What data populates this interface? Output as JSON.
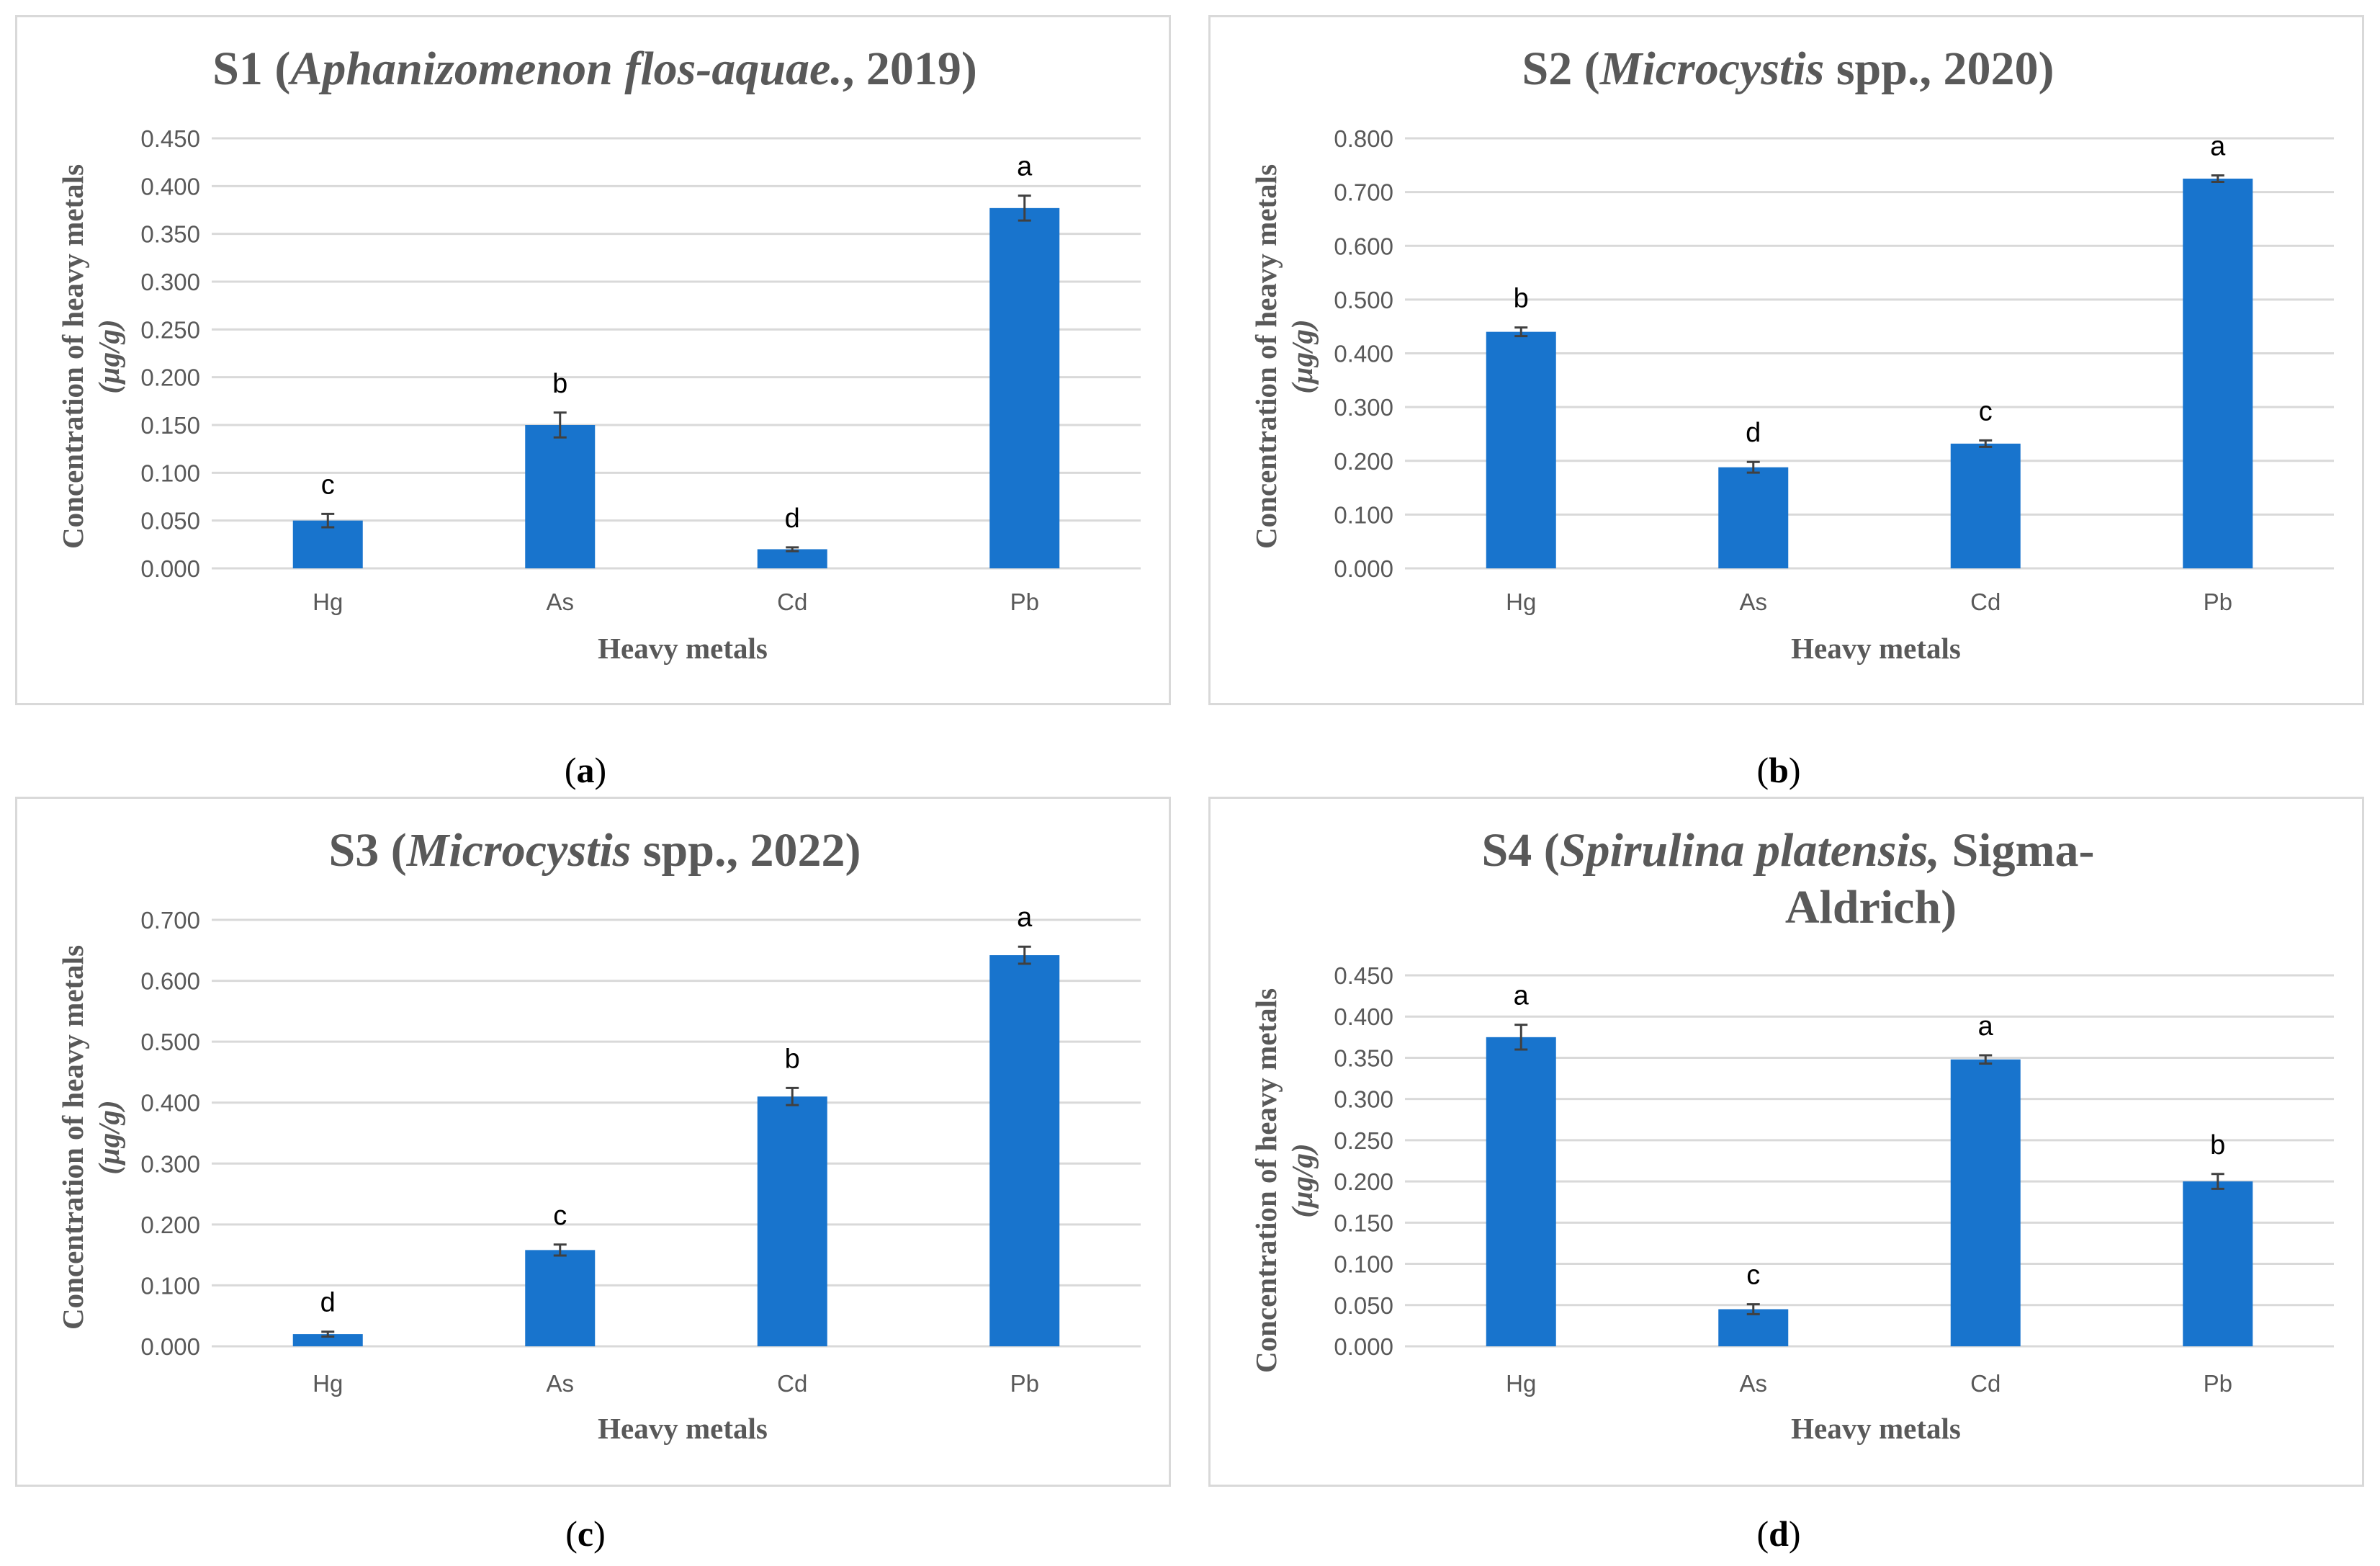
{
  "colors": {
    "bar": "#1874CD",
    "grid": "#d9d9d9",
    "text": "#595959",
    "border": "#d9d9d9",
    "errorbar": "#404040"
  },
  "captions": {
    "a": "a",
    "b": "b",
    "c": "c",
    "d": "d"
  },
  "chart_data": [
    {
      "type": "bar",
      "title": {
        "prefix": "S1 (",
        "italic": "Aphanizomenon flos-aquae.",
        "suffix": ", 2019)"
      },
      "categories": [
        "Hg",
        "As",
        "Cd",
        "Pb"
      ],
      "values": [
        0.05,
        0.15,
        0.02,
        0.377
      ],
      "errors": [
        0.007,
        0.013,
        0.002,
        0.013
      ],
      "letters": [
        "c",
        "b",
        "d",
        "a"
      ],
      "ylim": [
        0,
        0.45
      ],
      "yticks": [
        "0.000",
        "0.050",
        "0.100",
        "0.150",
        "0.200",
        "0.250",
        "0.300",
        "0.350",
        "0.400",
        "0.450"
      ],
      "xlabel": "Heavy metals",
      "ylabel": "Concentration of heavy metals",
      "ylabel_unit": "(µg/g)",
      "grid": true
    },
    {
      "type": "bar",
      "title": {
        "prefix": "S2 (",
        "italic": "Microcystis",
        "suffix": " spp., 2020)"
      },
      "categories": [
        "Hg",
        "As",
        "Cd",
        "Pb"
      ],
      "values": [
        0.44,
        0.188,
        0.232,
        0.725
      ],
      "errors": [
        0.008,
        0.01,
        0.006,
        0.006
      ],
      "letters": [
        "b",
        "d",
        "c",
        "a"
      ],
      "ylim": [
        0,
        0.8
      ],
      "yticks": [
        "0.000",
        "0.100",
        "0.200",
        "0.300",
        "0.400",
        "0.500",
        "0.600",
        "0.700",
        "0.800"
      ],
      "xlabel": "Heavy metals",
      "ylabel": "Concentration of heavy metals",
      "ylabel_unit": "(µg/g)",
      "grid": true
    },
    {
      "type": "bar",
      "title": {
        "prefix": "S3 (",
        "italic": "Microcystis",
        "suffix": " spp., 2022)"
      },
      "categories": [
        "Hg",
        "As",
        "Cd",
        "Pb"
      ],
      "values": [
        0.02,
        0.158,
        0.41,
        0.642
      ],
      "errors": [
        0.004,
        0.009,
        0.014,
        0.014
      ],
      "letters": [
        "d",
        "c",
        "b",
        "a"
      ],
      "ylim": [
        0,
        0.7
      ],
      "yticks": [
        "0.000",
        "0.100",
        "0.200",
        "0.300",
        "0.400",
        "0.500",
        "0.600",
        "0.700"
      ],
      "xlabel": "Heavy metals",
      "ylabel": "Concentration of heavy metals",
      "ylabel_unit": "(µg/g)",
      "grid": true
    },
    {
      "type": "bar",
      "title": {
        "prefix": "S4 (",
        "italic": "Spirulina platensis,",
        "suffix": " Sigma-",
        "line2": "Aldrich)"
      },
      "categories": [
        "Hg",
        "As",
        "Cd",
        "Pb"
      ],
      "values": [
        0.375,
        0.045,
        0.348,
        0.2
      ],
      "errors": [
        0.015,
        0.006,
        0.005,
        0.009
      ],
      "letters": [
        "a",
        "c",
        "a",
        "b"
      ],
      "ylim": [
        0,
        0.45
      ],
      "yticks": [
        "0.000",
        "0.050",
        "0.100",
        "0.150",
        "0.200",
        "0.250",
        "0.300",
        "0.350",
        "0.400",
        "0.450"
      ],
      "xlabel": "Heavy metals",
      "ylabel": "Concentration of heavy metals",
      "ylabel_unit": "(µg/g)",
      "grid": true
    }
  ]
}
